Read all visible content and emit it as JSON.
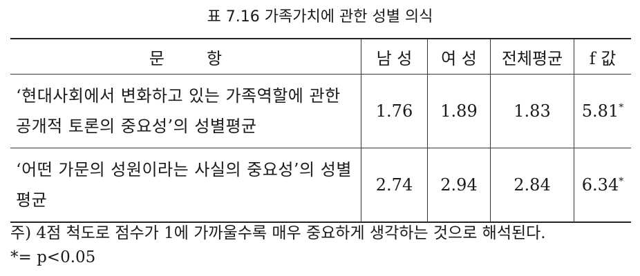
{
  "title": "표 7.16  가족가치에 관한 성별 의식",
  "table": {
    "headers": [
      "문        항",
      "남 성",
      "여 성",
      "전체평균",
      "f 값"
    ],
    "rows": [
      {
        "item": "‘현대사회에서 변화하고 있는 가족역할에 관한 공개적 토론의 중요성’의 성별평균",
        "male": "1.76",
        "female": "1.89",
        "total": "1.83",
        "f": "5.81",
        "sig": "*"
      },
      {
        "item": "‘어떤 가문의 성원이라는 사실의 중요성’의 성별평균",
        "male": "2.74",
        "female": "2.94",
        "total": "2.84",
        "f": "6.34",
        "sig": "*"
      }
    ]
  },
  "notes": [
    "주) 4점 척도로 점수가 1에 가까울수록 매우 중요하게 생각하는 것으로 해석된다.",
    "*= p<0.05"
  ]
}
